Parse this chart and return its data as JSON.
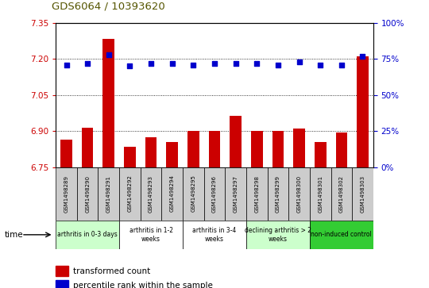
{
  "title": "GDS6064 / 10393620",
  "samples": [
    "GSM1498289",
    "GSM1498290",
    "GSM1498291",
    "GSM1498292",
    "GSM1498293",
    "GSM1498294",
    "GSM1498295",
    "GSM1498296",
    "GSM1498297",
    "GSM1498298",
    "GSM1498299",
    "GSM1498300",
    "GSM1498301",
    "GSM1498302",
    "GSM1498303"
  ],
  "transformed_count": [
    6.865,
    6.915,
    7.285,
    6.835,
    6.875,
    6.855,
    6.9,
    6.9,
    6.965,
    6.9,
    6.9,
    6.91,
    6.855,
    6.895,
    7.21
  ],
  "percentile_rank": [
    71,
    72,
    78,
    70,
    72,
    72,
    71,
    72,
    72,
    72,
    71,
    73,
    71,
    71,
    77
  ],
  "ylim_left": [
    6.75,
    7.35
  ],
  "ylim_right": [
    0,
    100
  ],
  "yticks_left": [
    6.75,
    6.9,
    7.05,
    7.2,
    7.35
  ],
  "yticks_right": [
    0,
    25,
    50,
    75,
    100
  ],
  "bar_color": "#cc0000",
  "dot_color": "#0000cc",
  "groups": [
    {
      "label": "arthritis in 0-3 days",
      "start": 0,
      "end": 3,
      "color": "#ccffcc"
    },
    {
      "label": "arthritis in 1-2\nweeks",
      "start": 3,
      "end": 6,
      "color": "#ffffff"
    },
    {
      "label": "arthritis in 3-4\nweeks",
      "start": 6,
      "end": 9,
      "color": "#ffffff"
    },
    {
      "label": "declining arthritis > 2\nweeks",
      "start": 9,
      "end": 12,
      "color": "#ccffcc"
    },
    {
      "label": "non-induced control",
      "start": 12,
      "end": 15,
      "color": "#33cc33"
    }
  ],
  "xlabel": "time",
  "legend_bar_label": "transformed count",
  "legend_dot_label": "percentile rank within the sample",
  "tick_color_left": "#cc0000",
  "tick_color_right": "#0000cc",
  "sample_box_color": "#cccccc"
}
